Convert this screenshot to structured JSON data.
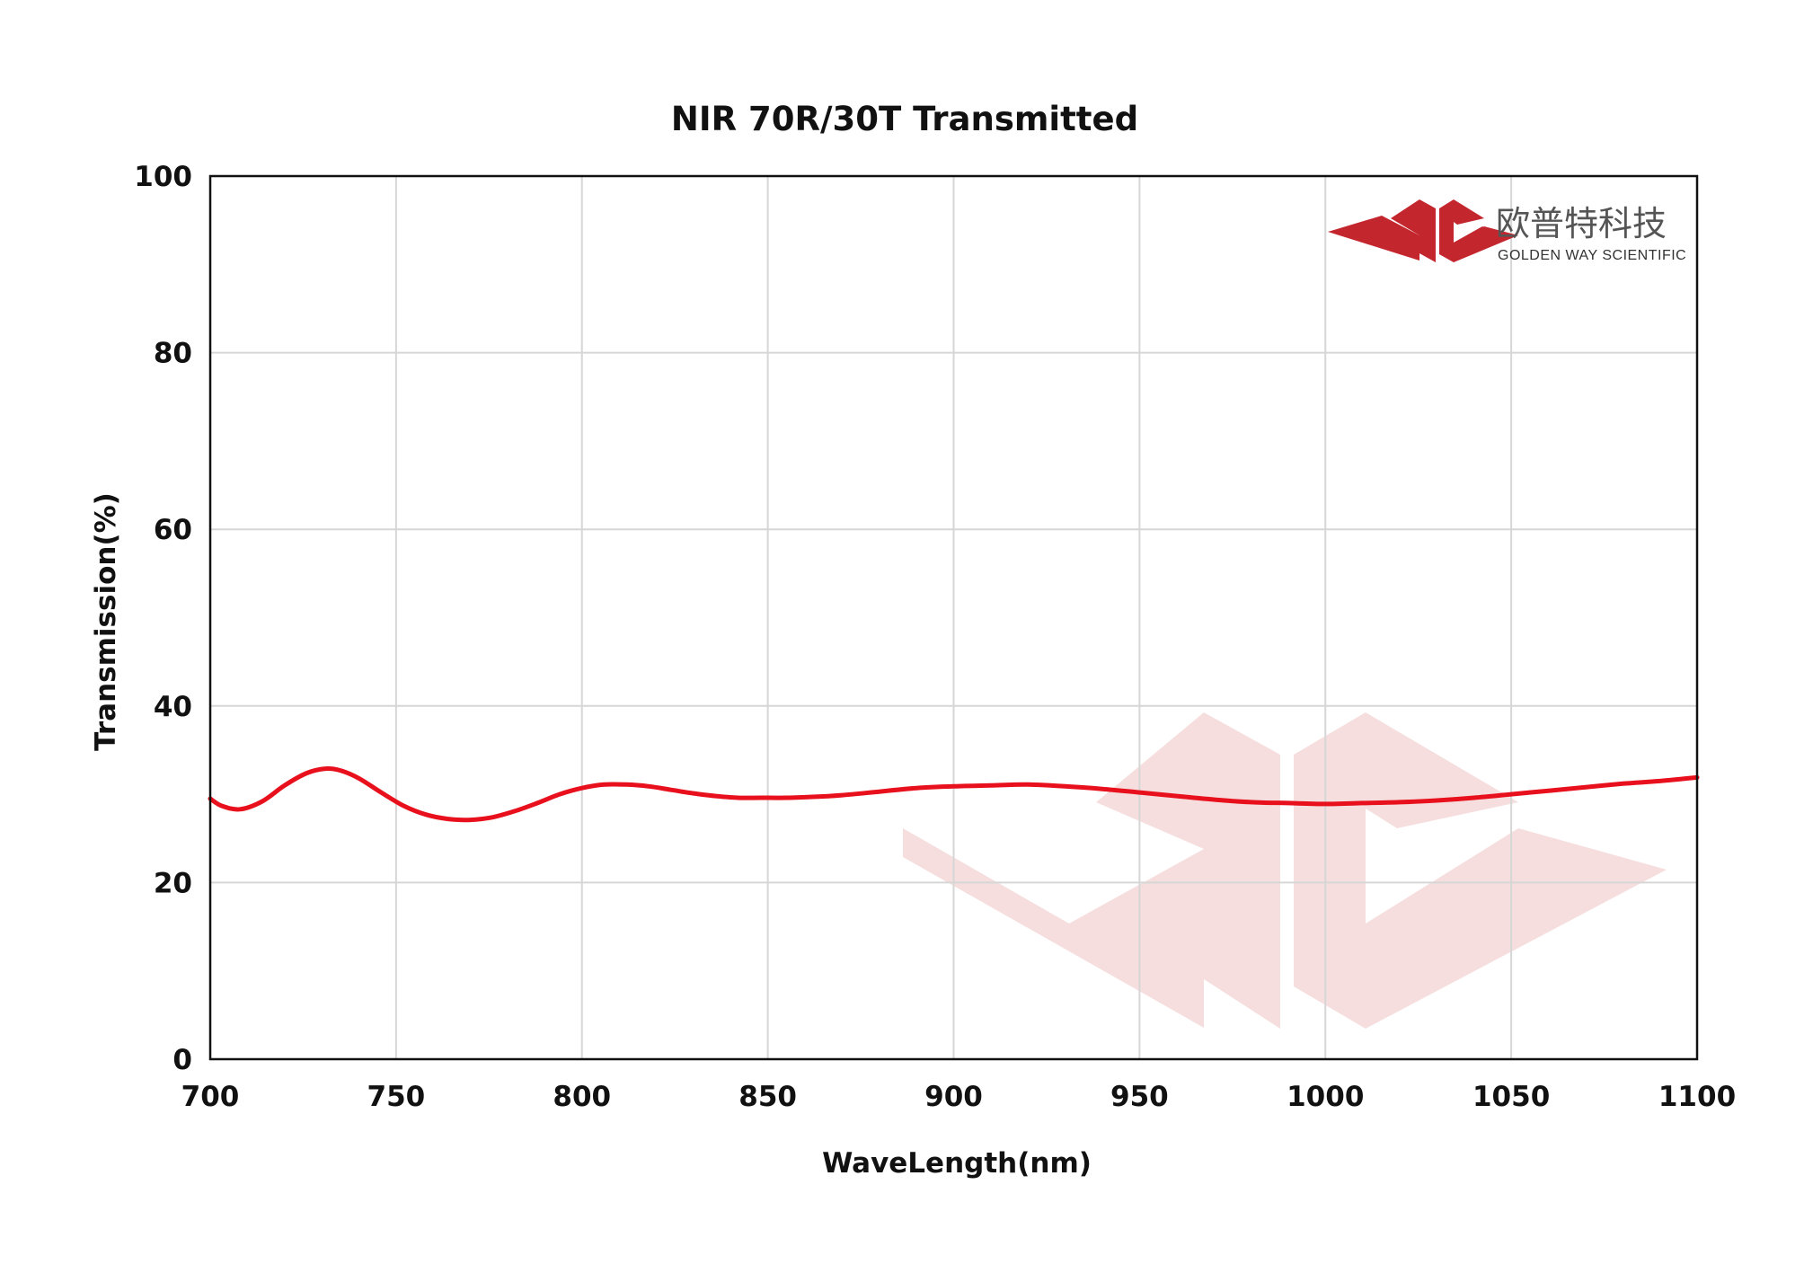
{
  "chart_data": {
    "type": "line",
    "title": "NIR 70R/30T Transmitted",
    "xlabel": "WaveLength(nm)",
    "ylabel": "Transmission(%)",
    "xlim": [
      700,
      1100
    ],
    "ylim": [
      0,
      100
    ],
    "xticks": [
      700,
      750,
      800,
      850,
      900,
      950,
      1000,
      1050,
      1100
    ],
    "yticks": [
      0,
      20,
      40,
      60,
      80,
      100
    ],
    "grid": true,
    "series": [
      {
        "color": "#e8101c",
        "x": [
          700,
          703,
          708,
          714,
          720,
          726,
          731,
          735,
          740,
          746,
          752,
          758,
          764,
          770,
          776,
          782,
          788,
          794,
          800,
          806,
          812,
          818,
          824,
          830,
          836,
          842,
          848,
          855,
          862,
          870,
          880,
          890,
          900,
          910,
          920,
          930,
          940,
          950,
          960,
          970,
          980,
          990,
          1000,
          1010,
          1020,
          1030,
          1040,
          1050,
          1060,
          1070,
          1080,
          1090,
          1100
        ],
        "y": [
          29.5,
          28.7,
          28.3,
          29.2,
          31.0,
          32.4,
          32.9,
          32.7,
          31.8,
          30.2,
          28.7,
          27.7,
          27.2,
          27.1,
          27.4,
          28.1,
          29.0,
          30.0,
          30.7,
          31.1,
          31.1,
          30.9,
          30.5,
          30.1,
          29.8,
          29.6,
          29.6,
          29.6,
          29.7,
          29.9,
          30.3,
          30.7,
          30.9,
          31.0,
          31.1,
          30.9,
          30.6,
          30.2,
          29.8,
          29.4,
          29.1,
          29.0,
          28.9,
          29.0,
          29.1,
          29.3,
          29.6,
          30.0,
          30.4,
          30.8,
          31.2,
          31.5,
          31.9
        ]
      }
    ]
  },
  "logo": {
    "chinese": "欧普特科技",
    "english": "GOLDEN WAY SCIENTIFIC",
    "color": "#c4262e"
  },
  "watermark": {
    "color": "#f6dede"
  }
}
